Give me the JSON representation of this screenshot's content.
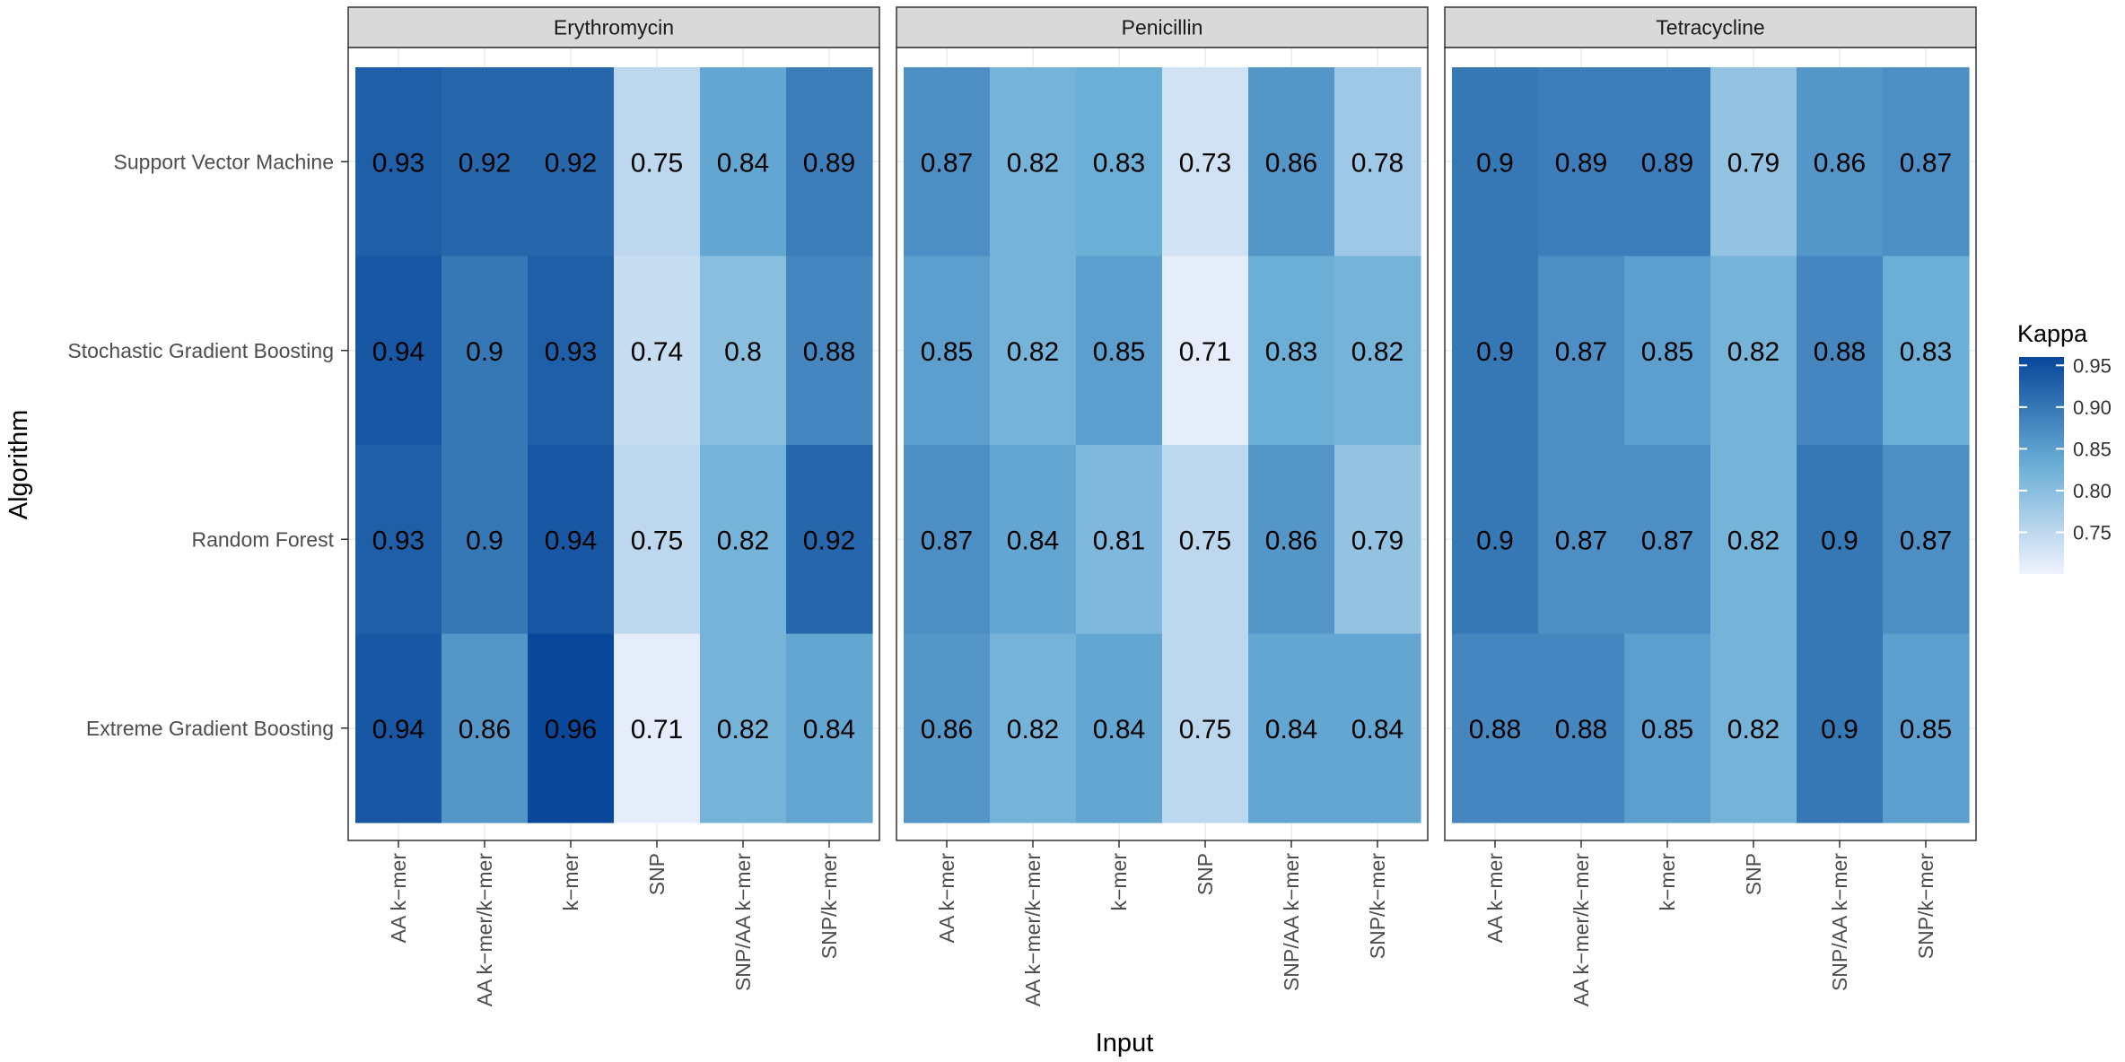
{
  "chart_data": {
    "type": "heatmap",
    "xlabel": "Input",
    "ylabel": "Algorithm",
    "legend_title": "Kappa",
    "legend_range": [
      0.7,
      0.96
    ],
    "legend_ticks": [
      "0.95",
      "0.90",
      "0.85",
      "0.80",
      "0.75"
    ],
    "legend_tick_values": [
      0.95,
      0.9,
      0.85,
      0.8,
      0.75
    ],
    "colors": {
      "low": "#f0f2fd",
      "mid": "#6baed6",
      "high": "#08479a",
      "strip_bg": "#d9d9d9",
      "grid": "#ebebeb",
      "border": "#333333"
    },
    "inputs": [
      "AA k−mer",
      "AA k−mer/k−mer",
      "k−mer",
      "SNP",
      "SNP/AA k−mer",
      "SNP/k−mer"
    ],
    "algorithms": [
      "Support Vector Machine",
      "Stochastic Gradient Boosting",
      "Random Forest",
      "Extreme Gradient Boosting"
    ],
    "panels": [
      {
        "name": "Erythromycin",
        "labels": [
          [
            "0.93",
            "0.92",
            "0.92",
            "0.75",
            "0.84",
            "0.89"
          ],
          [
            "0.94",
            "0.9",
            "0.93",
            "0.74",
            "0.8",
            "0.88"
          ],
          [
            "0.93",
            "0.9",
            "0.94",
            "0.75",
            "0.82",
            "0.92"
          ],
          [
            "0.94",
            "0.86",
            "0.96",
            "0.71",
            "0.82",
            "0.84"
          ]
        ],
        "values": [
          [
            0.93,
            0.92,
            0.92,
            0.75,
            0.84,
            0.89
          ],
          [
            0.94,
            0.9,
            0.93,
            0.74,
            0.8,
            0.88
          ],
          [
            0.93,
            0.9,
            0.94,
            0.75,
            0.82,
            0.92
          ],
          [
            0.94,
            0.86,
            0.96,
            0.71,
            0.82,
            0.84
          ]
        ]
      },
      {
        "name": "Penicillin",
        "labels": [
          [
            "0.87",
            "0.82",
            "0.83",
            "0.73",
            "0.86",
            "0.78"
          ],
          [
            "0.85",
            "0.82",
            "0.85",
            "0.71",
            "0.83",
            "0.82"
          ],
          [
            "0.87",
            "0.84",
            "0.81",
            "0.75",
            "0.86",
            "0.79"
          ],
          [
            "0.86",
            "0.82",
            "0.84",
            "0.75",
            "0.84",
            "0.84"
          ]
        ],
        "values": [
          [
            0.87,
            0.82,
            0.83,
            0.73,
            0.86,
            0.78
          ],
          [
            0.85,
            0.82,
            0.85,
            0.71,
            0.83,
            0.82
          ],
          [
            0.87,
            0.84,
            0.81,
            0.75,
            0.86,
            0.79
          ],
          [
            0.86,
            0.82,
            0.84,
            0.75,
            0.84,
            0.84
          ]
        ]
      },
      {
        "name": "Tetracycline",
        "labels": [
          [
            "0.9",
            "0.89",
            "0.89",
            "0.79",
            "0.86",
            "0.87"
          ],
          [
            "0.9",
            "0.87",
            "0.85",
            "0.82",
            "0.88",
            "0.83"
          ],
          [
            "0.9",
            "0.87",
            "0.87",
            "0.82",
            "0.9",
            "0.87"
          ],
          [
            "0.88",
            "0.88",
            "0.85",
            "0.82",
            "0.9",
            "0.85"
          ]
        ],
        "values": [
          [
            0.9,
            0.89,
            0.89,
            0.79,
            0.86,
            0.87
          ],
          [
            0.9,
            0.87,
            0.85,
            0.82,
            0.88,
            0.83
          ],
          [
            0.9,
            0.87,
            0.87,
            0.82,
            0.9,
            0.87
          ],
          [
            0.88,
            0.88,
            0.85,
            0.82,
            0.9,
            0.85
          ]
        ]
      }
    ]
  }
}
